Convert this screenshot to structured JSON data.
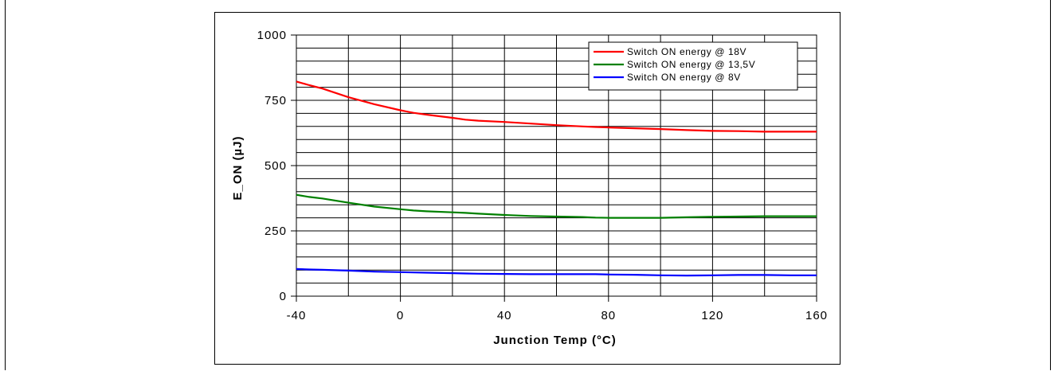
{
  "chart_data": {
    "type": "line",
    "title": "",
    "xlabel": "Junction Temp (°C)",
    "ylabel": "E_ON (µJ)",
    "xlim": [
      -40,
      160
    ],
    "ylim": [
      0,
      1000
    ],
    "xticks": [
      -40,
      0,
      40,
      80,
      120,
      160
    ],
    "yticks": [
      0,
      250,
      500,
      750,
      1000
    ],
    "xtick_labels": [
      "-40",
      "0",
      "40",
      "80",
      "120",
      "160"
    ],
    "ytick_labels": [
      "0",
      "250",
      "500",
      "750",
      "1000"
    ],
    "grid": true,
    "legend_position": "top-right",
    "x": [
      -40,
      -35,
      -30,
      -20,
      -10,
      0,
      5,
      10,
      20,
      25,
      30,
      40,
      50,
      60,
      70,
      75,
      80,
      90,
      100,
      110,
      120,
      130,
      140,
      150,
      160
    ],
    "series": [
      {
        "name": "Switch ON energy @ 18V",
        "color": "#ff0000",
        "values": [
          822,
          808,
          795,
          762,
          735,
          712,
          702,
          695,
          683,
          676,
          672,
          667,
          661,
          655,
          650,
          648,
          646,
          643,
          640,
          636,
          633,
          632,
          630,
          630,
          630
        ]
      },
      {
        "name": "Switch ON energy @ 13,5V",
        "color": "#008000",
        "values": [
          388,
          380,
          374,
          358,
          343,
          333,
          328,
          325,
          321,
          319,
          316,
          311,
          307,
          305,
          303,
          301,
          300,
          300,
          300,
          302,
          304,
          305,
          306,
          306,
          306
        ]
      },
      {
        "name": "Switch ON energy @ 8V",
        "color": "#0000ff",
        "values": [
          104,
          102,
          101,
          98,
          94,
          92,
          91,
          90,
          88,
          87,
          86,
          85,
          84,
          84,
          84,
          84,
          83,
          82,
          80,
          79,
          80,
          81,
          81,
          80,
          80
        ]
      }
    ]
  }
}
